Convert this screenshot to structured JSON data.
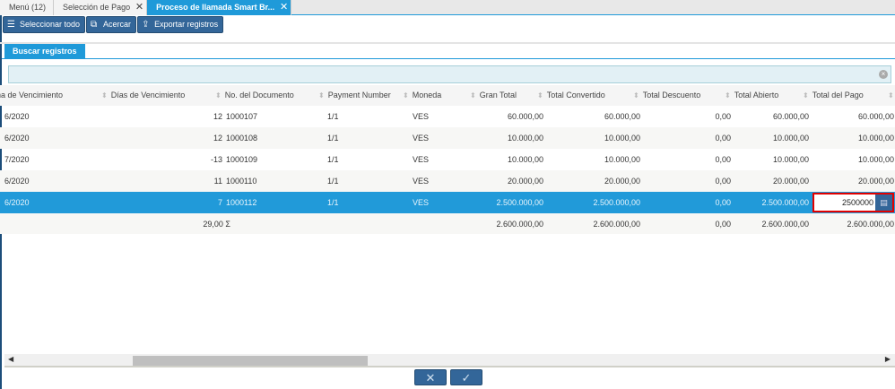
{
  "tabs": [
    {
      "label": "Menú (12)"
    },
    {
      "label": "Selección de Pago"
    },
    {
      "label": "Proceso de llamada Smart Br..."
    }
  ],
  "toolbar": {
    "select_all": "Seleccionar todo",
    "zoom": "Acercar",
    "export": "Exportar registros"
  },
  "search_tab": "Buscar registros",
  "table": {
    "headers": [
      "na de Vencimiento",
      "Días de Vencimiento",
      "No. del Documento",
      "Payment Number",
      "Moneda",
      "Gran Total",
      "Total Convertido",
      "Total Descuento",
      "Total Abierto",
      "Total del Pago"
    ],
    "rows": [
      [
        "6/2020",
        "12",
        "1000107",
        "1/1",
        "VES",
        "60.000,00",
        "60.000,00",
        "0,00",
        "60.000,00",
        "60.000,00"
      ],
      [
        "6/2020",
        "12",
        "1000108",
        "1/1",
        "VES",
        "10.000,00",
        "10.000,00",
        "0,00",
        "10.000,00",
        "10.000,00"
      ],
      [
        "7/2020",
        "-13",
        "1000109",
        "1/1",
        "VES",
        "10.000,00",
        "10.000,00",
        "0,00",
        "10.000,00",
        "10.000,00"
      ],
      [
        "6/2020",
        "11",
        "1000110",
        "1/1",
        "VES",
        "20.000,00",
        "20.000,00",
        "0,00",
        "20.000,00",
        "20.000,00"
      ],
      [
        "6/2020",
        "7",
        "1000112",
        "1/1",
        "VES",
        "2.500.000,00",
        "2.500.000,00",
        "0,00",
        "2.500.000,00",
        "2500000"
      ]
    ],
    "selected_row": 4,
    "footer": {
      "days_sum": "29,00 Σ",
      "gran_total": "2.600.000,00",
      "total_convertido": "2.600.000,00",
      "total_descuento": "0,00",
      "total_abierto": "2.600.000,00",
      "total_pago": "2.600.000,00"
    }
  },
  "actions": {
    "cancel": "✕",
    "ok": "✓"
  }
}
